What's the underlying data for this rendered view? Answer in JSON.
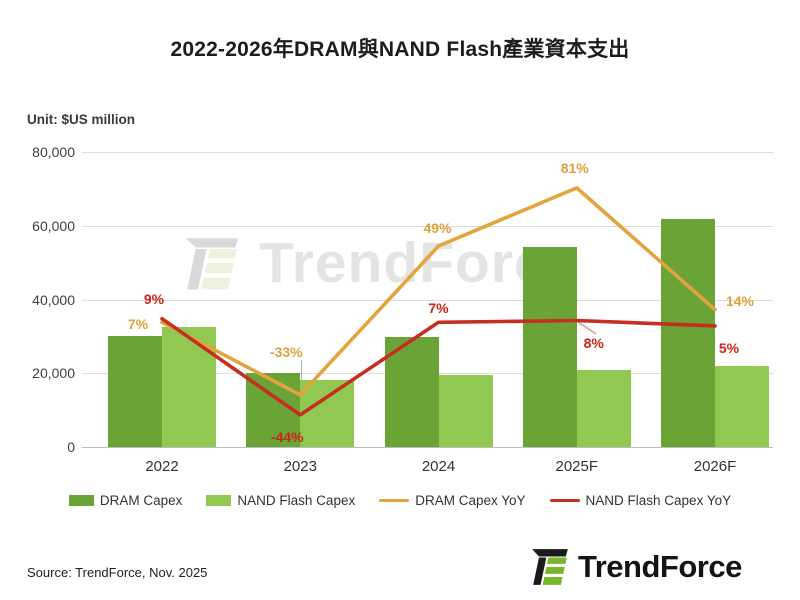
{
  "title": "2022-2026年DRAM與NAND Flash產業資本支出",
  "unit_label": "Unit: $US million",
  "source": "Source: TrendForce, Nov. 2025",
  "watermark_text": "TrendForce",
  "logo_text": "TrendForce",
  "colors": {
    "dram_bar": "#6aa436",
    "nand_bar": "#90c852",
    "dram_line": "#e3a33d",
    "nand_line": "#c52f21",
    "orange_label": "#e0a03a",
    "red_label": "#cc2418",
    "grid": "#dcdcdc",
    "axis_text": "#3f3f3f",
    "watermark": "#e4e4e4"
  },
  "chart_data": {
    "type": "bar",
    "subtype": "grouped bars with two YoY percentage lines on hidden secondary axis",
    "title": "2022-2026年DRAM與NAND Flash產業資本支出",
    "unit": "$US million",
    "categories": [
      "2022",
      "2023",
      "2024",
      "2025F",
      "2026F"
    ],
    "series": [
      {
        "name": "DRAM Capex",
        "type": "bar",
        "values": [
          30000,
          20100,
          29900,
          54200,
          61800
        ]
      },
      {
        "name": "NAND Flash Capex",
        "type": "bar",
        "values": [
          32500,
          18200,
          19500,
          21000,
          22100
        ]
      },
      {
        "name": "DRAM Capex YoY",
        "type": "line",
        "values_pct": [
          7,
          -33,
          49,
          81,
          14
        ],
        "labels": [
          "7%",
          "-33%",
          "49%",
          "81%",
          "14%"
        ]
      },
      {
        "name": "NAND Flash Capex YoY",
        "type": "line",
        "values_pct": [
          9,
          -44,
          7,
          8,
          5
        ],
        "labels": [
          "9%",
          "-44%",
          "7%",
          "8%",
          "5%"
        ]
      }
    ],
    "y_axis": {
      "min": 0,
      "max": 80000,
      "tick_labels": [
        "80,000",
        "60,000",
        "40,000",
        "20,000",
        "0"
      ],
      "tick_values": [
        80000,
        60000,
        40000,
        20000,
        0
      ],
      "grid": true
    },
    "legend": [
      "DRAM Capex",
      "NAND Flash Capex",
      "DRAM Capex YoY",
      "NAND Flash Capex YoY"
    ],
    "legend_position": "bottom"
  }
}
